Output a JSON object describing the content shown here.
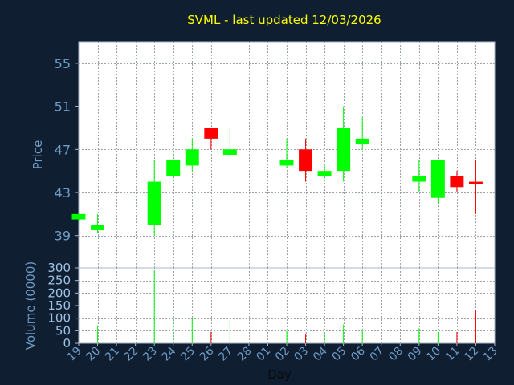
{
  "title": "SVML - last updated 12/03/2026",
  "chart_data": {
    "type": "candlestick",
    "title": "SVML - last updated 12/03/2026",
    "xlabel": "Day",
    "ylabel": "Price",
    "volume_label": "Volume (0000)",
    "price_ylim": [
      36,
      57
    ],
    "price_ticks": [
      39,
      43,
      47,
      51,
      55
    ],
    "volume_ylim": [
      0,
      300
    ],
    "volume_ticks": [
      0,
      50,
      100,
      150,
      200,
      250,
      300
    ],
    "x_ticks": [
      "19",
      "20",
      "21",
      "22",
      "23",
      "24",
      "25",
      "26",
      "27",
      "28",
      "01",
      "02",
      "03",
      "04",
      "05",
      "06",
      "07",
      "08",
      "09",
      "10",
      "11",
      "12",
      "13"
    ],
    "grid": true,
    "up_color": "#00ff00",
    "down_color": "#ff0000",
    "candles": [
      {
        "day": "19",
        "open": 40.5,
        "high": 41.0,
        "low": 40.3,
        "close": 41.0,
        "volume": 0
      },
      {
        "day": "20",
        "open": 39.5,
        "high": 41.0,
        "low": 39.2,
        "close": 40.0,
        "volume": 70
      },
      {
        "day": "23",
        "open": 40.0,
        "high": 46.0,
        "low": 39.0,
        "close": 44.0,
        "volume": 290
      },
      {
        "day": "24",
        "open": 44.5,
        "high": 47.0,
        "low": 44.0,
        "close": 46.0,
        "volume": 100
      },
      {
        "day": "25",
        "open": 45.5,
        "high": 48.0,
        "low": 45.0,
        "close": 47.0,
        "volume": 100
      },
      {
        "day": "26",
        "open": 49.0,
        "high": 49.0,
        "low": 47.0,
        "close": 48.0,
        "volume": 45
      },
      {
        "day": "27",
        "open": 46.5,
        "high": 49.0,
        "low": 46.2,
        "close": 47.0,
        "volume": 90
      },
      {
        "day": "02",
        "open": 45.5,
        "high": 48.0,
        "low": 45.3,
        "close": 46.0,
        "volume": 50
      },
      {
        "day": "03",
        "open": 47.0,
        "high": 48.0,
        "low": 44.0,
        "close": 45.0,
        "volume": 35
      },
      {
        "day": "04",
        "open": 44.5,
        "high": 45.5,
        "low": 44.3,
        "close": 45.0,
        "volume": 40
      },
      {
        "day": "05",
        "open": 45.0,
        "high": 51.0,
        "low": 44.0,
        "close": 49.0,
        "volume": 75
      },
      {
        "day": "06",
        "open": 47.5,
        "high": 50.0,
        "low": 47.0,
        "close": 48.0,
        "volume": 50
      },
      {
        "day": "09",
        "open": 44.0,
        "high": 46.0,
        "low": 43.0,
        "close": 44.5,
        "volume": 60
      },
      {
        "day": "10",
        "open": 42.5,
        "high": 46.0,
        "low": 42.0,
        "close": 46.0,
        "volume": 45
      },
      {
        "day": "11",
        "open": 44.5,
        "high": 45.0,
        "low": 43.0,
        "close": 43.5,
        "volume": 45
      },
      {
        "day": "12",
        "open": 44.0,
        "high": 46.0,
        "low": 41.0,
        "close": 43.8,
        "volume": 130
      }
    ]
  }
}
